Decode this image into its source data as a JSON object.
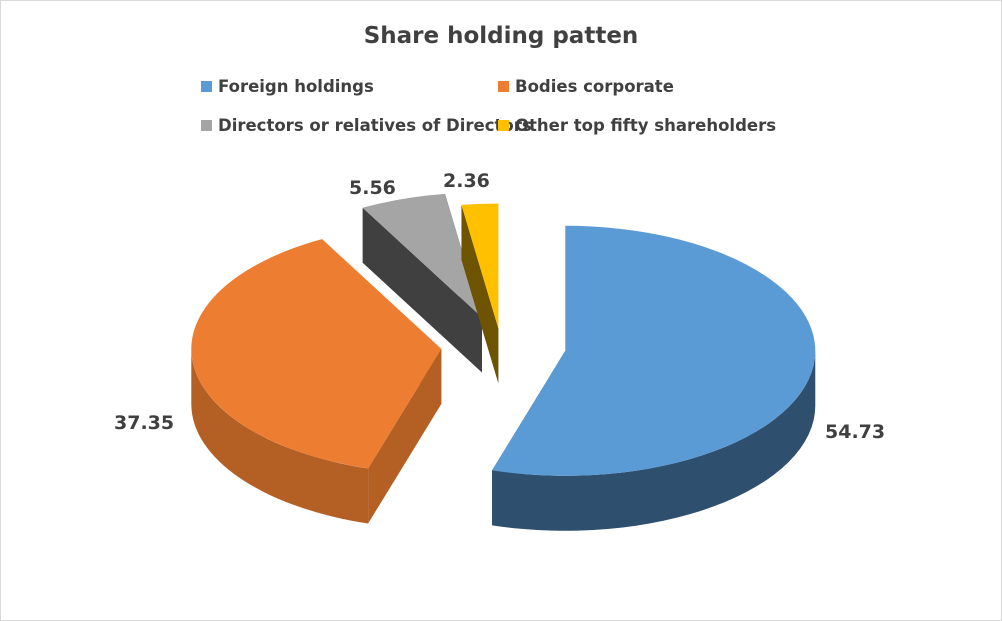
{
  "chart_data": {
    "type": "pie",
    "style": "3d-exploded",
    "title": "Share holding patten",
    "legend_position": "top",
    "categories": [
      "Foreign holdings",
      "Bodies corporate",
      "Directors or relatives of Directors",
      "Other top fifty shareholders"
    ],
    "values": [
      54.73,
      37.35,
      5.56,
      2.36
    ],
    "data_labels": [
      "54.73",
      "37.35",
      "5.56",
      "2.36"
    ],
    "colors": [
      "#5b9bd5",
      "#ed7d31",
      "#a5a5a5",
      "#ffc000"
    ],
    "side_colors": [
      "#2f4f6e",
      "#b45f24",
      "#404040",
      "#6e5300"
    ]
  }
}
